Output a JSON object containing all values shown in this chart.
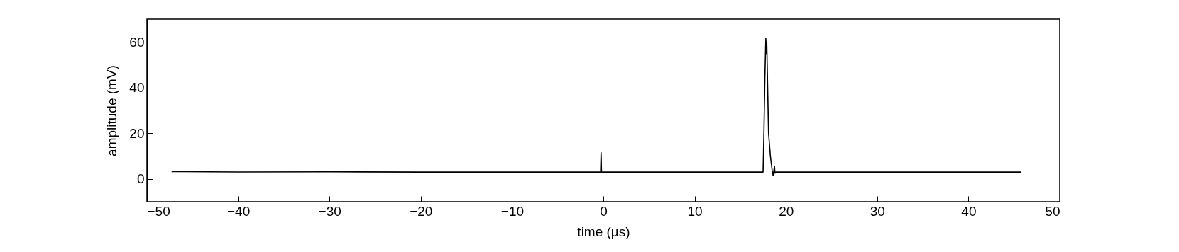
{
  "chart_data": {
    "type": "line",
    "xlabel": "time (µs)",
    "ylabel": "amplitude (mV)",
    "x": [
      -47.3,
      -40,
      -30,
      -20,
      -10,
      -0.3,
      -0.25,
      -0.2,
      10,
      17.5,
      17.6,
      17.7,
      17.8,
      17.85,
      17.9,
      18.0,
      18.1,
      18.3,
      18.5,
      18.6,
      18.75,
      18.8,
      18.9,
      30,
      45.8
    ],
    "series": [
      {
        "color": "#000000",
        "values": [
          3.2,
          3.0,
          3.1,
          3.0,
          3.0,
          3.0,
          11.5,
          3.0,
          3.0,
          3.0,
          22,
          45,
          61.5,
          55,
          60,
          40,
          20,
          10,
          3.5,
          1.5,
          5.5,
          2.5,
          3.0,
          3.0,
          3.0
        ]
      }
    ],
    "xlim": [
      -50,
      50
    ],
    "xticks": [
      -50,
      -40,
      -30,
      -20,
      -10,
      0,
      10,
      20,
      30,
      40,
      50
    ],
    "ylim": [
      -10,
      70
    ],
    "yticks": [
      0,
      20,
      40,
      60
    ],
    "grid": false,
    "marker": "none",
    "line_style": "solid"
  }
}
